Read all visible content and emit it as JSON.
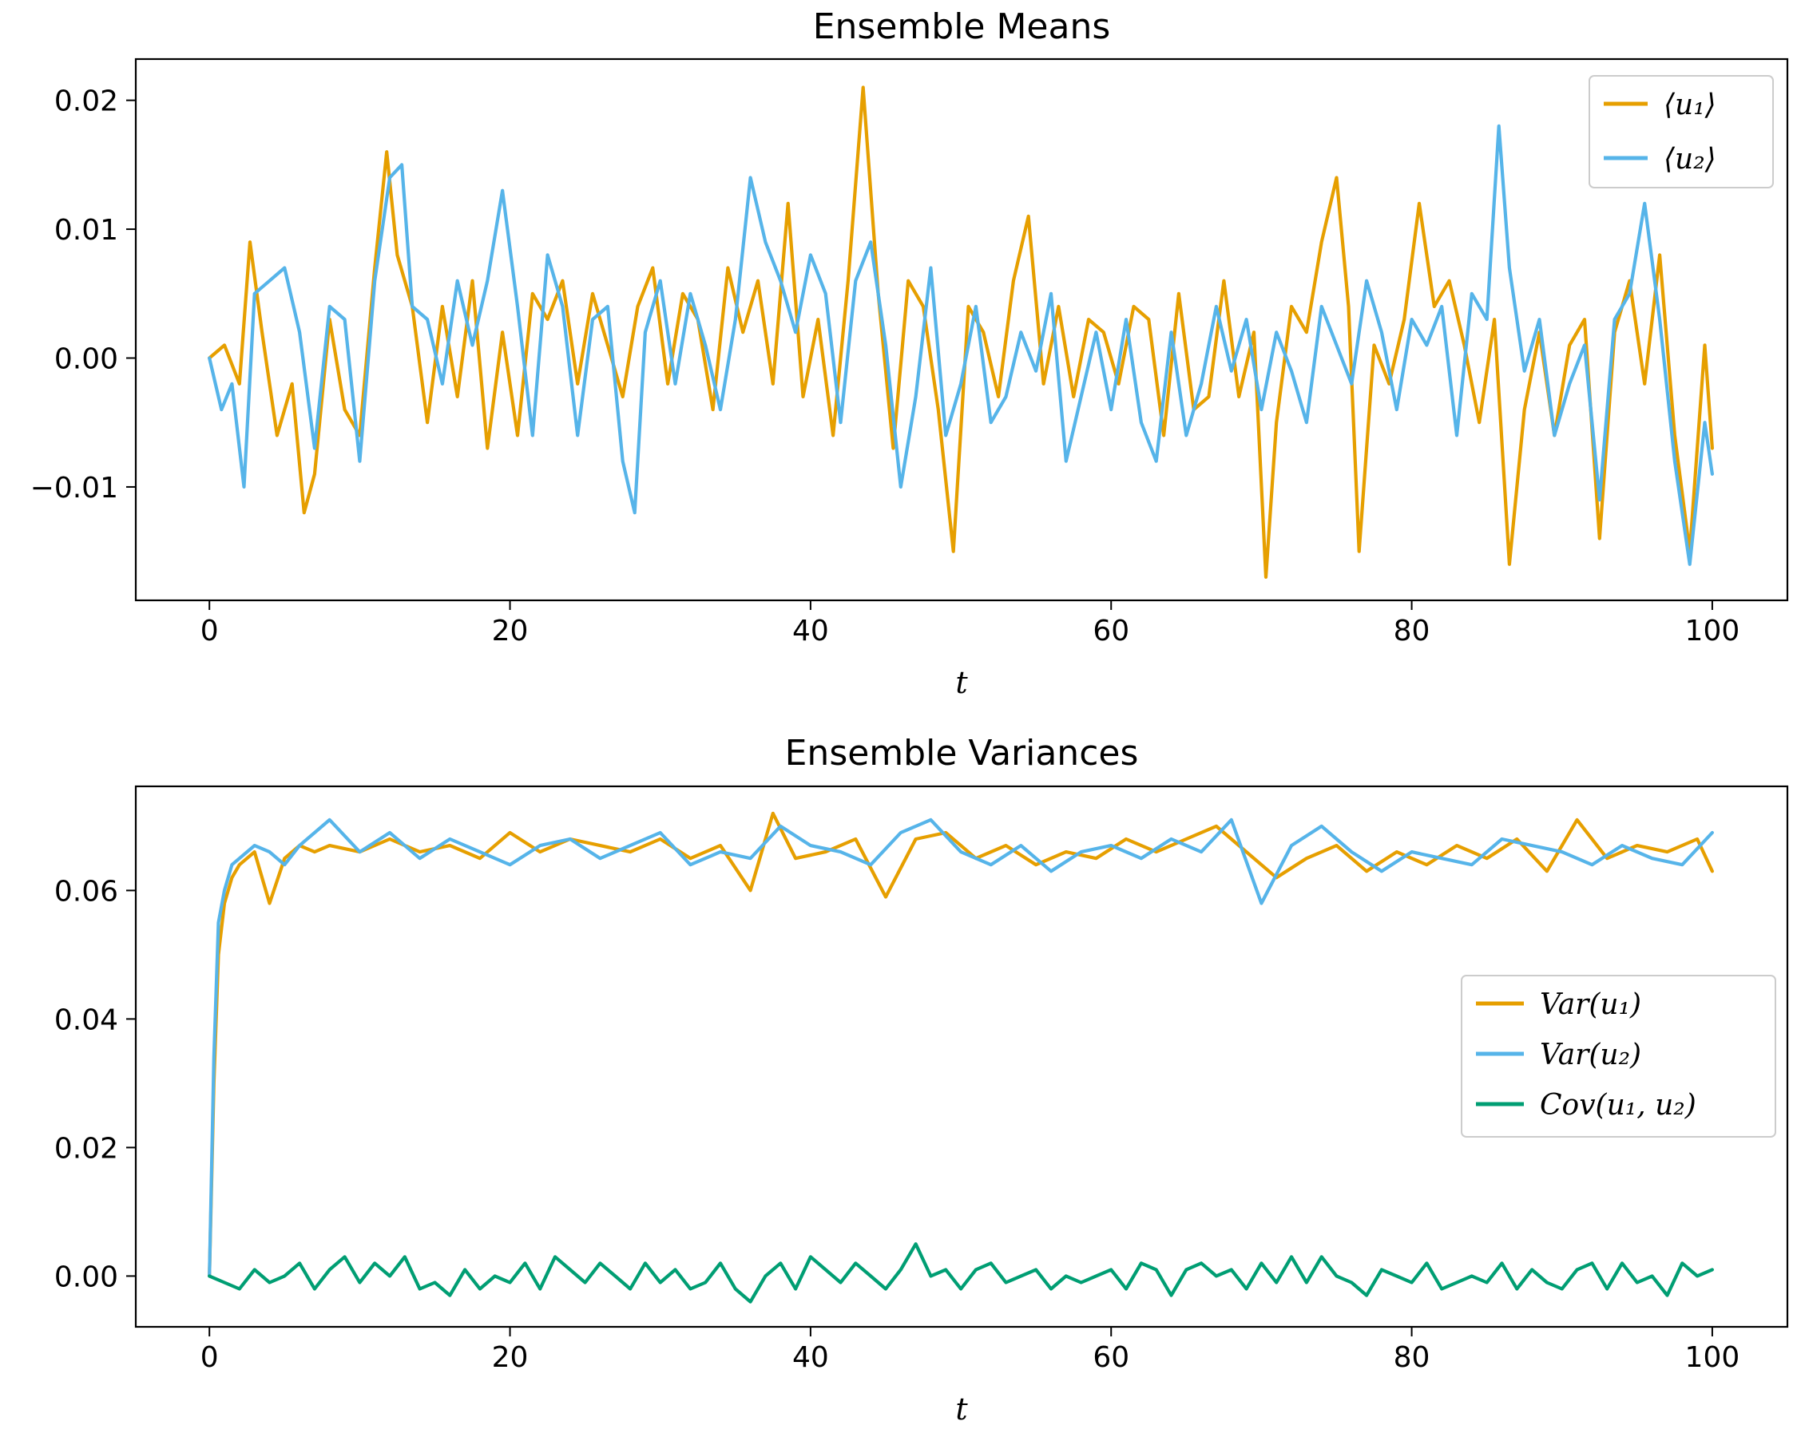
{
  "chart_data": [
    {
      "type": "line",
      "title": "Ensemble Means",
      "xlabel": "t",
      "ylabel": "",
      "xlim": [
        -4.9,
        105
      ],
      "ylim": [
        -0.0188,
        0.0232
      ],
      "xticks": [
        0,
        20,
        40,
        60,
        80,
        100
      ],
      "xtick_labels": [
        "0",
        "20",
        "40",
        "60",
        "80",
        "100"
      ],
      "yticks": [
        -0.01,
        0.0,
        0.01,
        0.02
      ],
      "ytick_labels": [
        "−0.01",
        "0.00",
        "0.01",
        "0.02"
      ],
      "legend_position": "top-right",
      "grid": false,
      "series": [
        {
          "name": "⟨u₁⟩",
          "color": "#E69F00",
          "x": [
            0,
            1,
            2,
            2.7,
            3.5,
            4.5,
            5.5,
            6.3,
            7,
            8,
            9,
            10,
            11,
            11.8,
            12.5,
            13.5,
            14.5,
            15.5,
            16.5,
            17.5,
            18.5,
            19.5,
            20.5,
            21.5,
            22.5,
            23.5,
            24.5,
            25.5,
            26.5,
            27.5,
            28.5,
            29.5,
            30.5,
            31.5,
            32.5,
            33.5,
            34.5,
            35.5,
            36.5,
            37.5,
            38.5,
            39.5,
            40.5,
            41.5,
            42.5,
            43.5,
            44.5,
            45.5,
            46.5,
            47.5,
            48.5,
            49.5,
            50.5,
            51.5,
            52.5,
            53.5,
            54.5,
            55.5,
            56.5,
            57.5,
            58.5,
            59.5,
            60.5,
            61.5,
            62.5,
            63.5,
            64.5,
            65.5,
            66.5,
            67.5,
            68.5,
            69.5,
            70.3,
            71,
            72,
            73,
            74,
            75,
            75.8,
            76.5,
            77.5,
            78.5,
            79.5,
            80.5,
            81.5,
            82.5,
            83.5,
            84.5,
            85.5,
            86.5,
            87.5,
            88.5,
            89.5,
            90.5,
            91.5,
            92.5,
            93.5,
            94.5,
            95.5,
            96.5,
            97.5,
            98.5,
            99.5,
            100
          ],
          "values": [
            0.0,
            0.001,
            -0.002,
            0.009,
            0.002,
            -0.006,
            -0.002,
            -0.012,
            -0.009,
            0.003,
            -0.004,
            -0.006,
            0.007,
            0.016,
            0.008,
            0.004,
            -0.005,
            0.004,
            -0.003,
            0.006,
            -0.007,
            0.002,
            -0.006,
            0.005,
            0.003,
            0.006,
            -0.002,
            0.005,
            0.001,
            -0.003,
            0.004,
            0.007,
            -0.002,
            0.005,
            0.003,
            -0.004,
            0.007,
            0.002,
            0.006,
            -0.002,
            0.012,
            -0.003,
            0.003,
            -0.006,
            0.006,
            0.021,
            0.005,
            -0.007,
            0.006,
            0.004,
            -0.004,
            -0.015,
            0.004,
            0.002,
            -0.003,
            0.006,
            0.011,
            -0.002,
            0.004,
            -0.003,
            0.003,
            0.002,
            -0.002,
            0.004,
            0.003,
            -0.006,
            0.005,
            -0.004,
            -0.003,
            0.006,
            -0.003,
            0.002,
            -0.017,
            -0.005,
            0.004,
            0.002,
            0.009,
            0.014,
            0.004,
            -0.015,
            0.001,
            -0.002,
            0.003,
            0.012,
            0.004,
            0.006,
            0.001,
            -0.005,
            0.003,
            -0.016,
            -0.004,
            0.002,
            -0.006,
            0.001,
            0.003,
            -0.014,
            0.002,
            0.006,
            -0.002,
            0.008,
            -0.006,
            -0.015,
            0.001,
            -0.007
          ]
        },
        {
          "name": "⟨u₂⟩",
          "color": "#56B4E9",
          "x": [
            0,
            0.8,
            1.5,
            2.3,
            3,
            4,
            5,
            6,
            7,
            8,
            9,
            10,
            11,
            12,
            12.8,
            13.5,
            14.5,
            15.5,
            16.5,
            17.5,
            18.5,
            19.5,
            20.5,
            21.5,
            22.5,
            23.5,
            24.5,
            25.5,
            26.5,
            27.5,
            28.3,
            29,
            30,
            31,
            32,
            33,
            34,
            35,
            36,
            37,
            38,
            39,
            40,
            41,
            42,
            43,
            44,
            45,
            46,
            47,
            48,
            49,
            50,
            51,
            52,
            53,
            54,
            55,
            56,
            57,
            58,
            59,
            60,
            61,
            62,
            63,
            64,
            65,
            66,
            67,
            68,
            69,
            70,
            71,
            72,
            73,
            74,
            75,
            76,
            77,
            78,
            79,
            80,
            81,
            82,
            83,
            84,
            85,
            85.8,
            86.5,
            87.5,
            88.5,
            89.5,
            90.5,
            91.5,
            92.5,
            93.5,
            94.5,
            95.5,
            96.5,
            97.5,
            98.5,
            99.5,
            100
          ],
          "values": [
            0.0,
            -0.004,
            -0.002,
            -0.01,
            0.005,
            0.006,
            0.007,
            0.002,
            -0.007,
            0.004,
            0.003,
            -0.008,
            0.006,
            0.014,
            0.015,
            0.004,
            0.003,
            -0.002,
            0.006,
            0.001,
            0.006,
            0.013,
            0.004,
            -0.006,
            0.008,
            0.004,
            -0.006,
            0.003,
            0.004,
            -0.008,
            -0.012,
            0.002,
            0.006,
            -0.002,
            0.005,
            0.001,
            -0.004,
            0.003,
            0.014,
            0.009,
            0.006,
            0.002,
            0.008,
            0.005,
            -0.005,
            0.006,
            0.009,
            0.001,
            -0.01,
            -0.003,
            0.007,
            -0.006,
            -0.002,
            0.004,
            -0.005,
            -0.003,
            0.002,
            -0.001,
            0.005,
            -0.008,
            -0.003,
            0.002,
            -0.004,
            0.003,
            -0.005,
            -0.008,
            0.002,
            -0.006,
            -0.002,
            0.004,
            -0.001,
            0.003,
            -0.004,
            0.002,
            -0.001,
            -0.005,
            0.004,
            0.001,
            -0.002,
            0.006,
            0.002,
            -0.004,
            0.003,
            0.001,
            0.004,
            -0.006,
            0.005,
            0.003,
            0.018,
            0.007,
            -0.001,
            0.003,
            -0.006,
            -0.002,
            0.001,
            -0.011,
            0.003,
            0.005,
            0.012,
            0.003,
            -0.008,
            -0.016,
            -0.005,
            -0.009
          ]
        }
      ]
    },
    {
      "type": "line",
      "title": "Ensemble Variances",
      "xlabel": "t",
      "ylabel": "",
      "xlim": [
        -4.9,
        105
      ],
      "ylim": [
        -0.0079,
        0.0762
      ],
      "xticks": [
        0,
        20,
        40,
        60,
        80,
        100
      ],
      "xtick_labels": [
        "0",
        "20",
        "40",
        "60",
        "80",
        "100"
      ],
      "yticks": [
        0.0,
        0.02,
        0.04,
        0.06
      ],
      "ytick_labels": [
        "0.00",
        "0.02",
        "0.04",
        "0.06"
      ],
      "legend_position": "center-right",
      "grid": false,
      "series": [
        {
          "name": "Var(u₁)",
          "color": "#E69F00",
          "x": [
            0,
            0.3,
            0.6,
            1,
            1.5,
            2,
            3,
            4,
            5,
            6,
            7,
            8,
            10,
            12,
            14,
            16,
            18,
            20,
            22,
            24,
            26,
            28,
            30,
            32,
            34,
            36,
            37.5,
            39,
            41,
            43,
            45,
            47,
            49,
            51,
            53,
            55,
            57,
            59,
            61,
            63,
            65,
            67,
            69,
            71,
            73,
            75,
            77,
            79,
            81,
            83,
            85,
            87,
            89,
            91,
            93,
            95,
            97,
            99,
            100
          ],
          "values": [
            0.0,
            0.03,
            0.05,
            0.058,
            0.062,
            0.064,
            0.066,
            0.058,
            0.065,
            0.067,
            0.066,
            0.067,
            0.066,
            0.068,
            0.066,
            0.067,
            0.065,
            0.069,
            0.066,
            0.068,
            0.067,
            0.066,
            0.068,
            0.065,
            0.067,
            0.06,
            0.072,
            0.065,
            0.066,
            0.068,
            0.059,
            0.068,
            0.069,
            0.065,
            0.067,
            0.064,
            0.066,
            0.065,
            0.068,
            0.066,
            0.068,
            0.07,
            0.066,
            0.062,
            0.065,
            0.067,
            0.063,
            0.066,
            0.064,
            0.067,
            0.065,
            0.068,
            0.063,
            0.071,
            0.065,
            0.067,
            0.066,
            0.068,
            0.063
          ]
        },
        {
          "name": "Var(u₂)",
          "color": "#56B4E9",
          "x": [
            0,
            0.3,
            0.6,
            1,
            1.5,
            2,
            3,
            4,
            5,
            6,
            7,
            8,
            10,
            12,
            14,
            16,
            18,
            20,
            22,
            24,
            26,
            28,
            30,
            32,
            34,
            36,
            38,
            40,
            42,
            44,
            46,
            48,
            50,
            52,
            54,
            56,
            58,
            60,
            62,
            64,
            66,
            68,
            70,
            72,
            74,
            76,
            78,
            80,
            82,
            84,
            86,
            88,
            90,
            92,
            94,
            96,
            98,
            100
          ],
          "values": [
            0.0,
            0.034,
            0.055,
            0.06,
            0.064,
            0.065,
            0.067,
            0.066,
            0.064,
            0.067,
            0.069,
            0.071,
            0.066,
            0.069,
            0.065,
            0.068,
            0.066,
            0.064,
            0.067,
            0.068,
            0.065,
            0.067,
            0.069,
            0.064,
            0.066,
            0.065,
            0.07,
            0.067,
            0.066,
            0.064,
            0.069,
            0.071,
            0.066,
            0.064,
            0.067,
            0.063,
            0.066,
            0.067,
            0.065,
            0.068,
            0.066,
            0.071,
            0.058,
            0.067,
            0.07,
            0.066,
            0.063,
            0.066,
            0.065,
            0.064,
            0.068,
            0.067,
            0.066,
            0.064,
            0.067,
            0.065,
            0.064,
            0.069
          ]
        },
        {
          "name": "Cov(u₁, u₂)",
          "color": "#009E73",
          "x": [
            0,
            1,
            2,
            3,
            4,
            5,
            6,
            7,
            8,
            9,
            10,
            11,
            12,
            13,
            14,
            15,
            16,
            17,
            18,
            19,
            20,
            21,
            22,
            23,
            24,
            25,
            26,
            27,
            28,
            29,
            30,
            31,
            32,
            33,
            34,
            35,
            36,
            37,
            38,
            39,
            40,
            41,
            42,
            43,
            44,
            45,
            46,
            47,
            48,
            49,
            50,
            51,
            52,
            53,
            54,
            55,
            56,
            57,
            58,
            59,
            60,
            61,
            62,
            63,
            64,
            65,
            66,
            67,
            68,
            69,
            70,
            71,
            72,
            73,
            74,
            75,
            76,
            77,
            78,
            79,
            80,
            81,
            82,
            83,
            84,
            85,
            86,
            87,
            88,
            89,
            90,
            91,
            92,
            93,
            94,
            95,
            96,
            97,
            98,
            99,
            100
          ],
          "values": [
            0.0,
            -0.001,
            -0.002,
            0.001,
            -0.001,
            0.0,
            0.002,
            -0.002,
            0.001,
            0.003,
            -0.001,
            0.002,
            0.0,
            0.003,
            -0.002,
            -0.001,
            -0.003,
            0.001,
            -0.002,
            0.0,
            -0.001,
            0.002,
            -0.002,
            0.003,
            0.001,
            -0.001,
            0.002,
            0.0,
            -0.002,
            0.002,
            -0.001,
            0.001,
            -0.002,
            -0.001,
            0.002,
            -0.002,
            -0.004,
            0.0,
            0.002,
            -0.002,
            0.003,
            0.001,
            -0.001,
            0.002,
            0.0,
            -0.002,
            0.001,
            0.005,
            0.0,
            0.001,
            -0.002,
            0.001,
            0.002,
            -0.001,
            0.0,
            0.001,
            -0.002,
            0.0,
            -0.001,
            0.0,
            0.001,
            -0.002,
            0.002,
            0.001,
            -0.003,
            0.001,
            0.002,
            0.0,
            0.001,
            -0.002,
            0.002,
            -0.001,
            0.003,
            -0.001,
            0.003,
            0.0,
            -0.001,
            -0.003,
            0.001,
            0.0,
            -0.001,
            0.002,
            -0.002,
            -0.001,
            0.0,
            -0.001,
            0.002,
            -0.002,
            0.001,
            -0.001,
            -0.002,
            0.001,
            0.002,
            -0.002,
            0.002,
            -0.001,
            0.0,
            -0.003,
            0.002,
            0.0,
            0.001
          ]
        }
      ]
    }
  ]
}
